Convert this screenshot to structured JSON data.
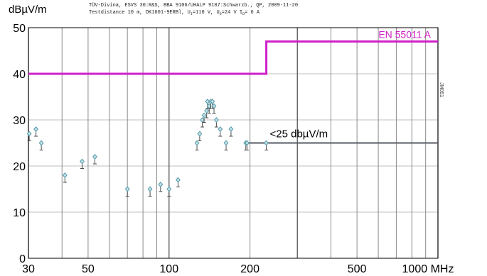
{
  "chart_data": {
    "type": "scatter",
    "ylabel": "dBµV/m",
    "xunit": "MHz",
    "header": {
      "line1": "TÜV-Divina, ESVS 30:R&S, BBA 9106/UHALP 9107:Schwarzb., QP, 2009-11-20",
      "line2_parts": [
        "Testdistance 10 m, DK1601-9ERBl, U",
        "I",
        "=110 V, U",
        "O",
        "=24 V I",
        "D",
        "= 6 A"
      ]
    },
    "side_label": "JM051",
    "x_scale": "log",
    "xlim": [
      30,
      1000
    ],
    "ylim": [
      0,
      50
    ],
    "x_ticks": [
      30,
      50,
      100,
      200,
      500,
      1000
    ],
    "x_tick_labels": [
      "30",
      "50",
      "100",
      "200",
      "500",
      "1000 MHz"
    ],
    "y_ticks": [
      0,
      10,
      20,
      30,
      40,
      50
    ],
    "y_tick_labels": [
      "0",
      "10",
      "20",
      "30",
      "40",
      "50"
    ],
    "grid_x": [
      30,
      40,
      50,
      60,
      70,
      80,
      90,
      100,
      200,
      300,
      400,
      500,
      600,
      700,
      800,
      900,
      1000
    ],
    "limit_line": {
      "name": "EN 55011 A",
      "color": "#d020c8",
      "points": [
        [
          30,
          40
        ],
        [
          230,
          40
        ],
        [
          230,
          47
        ],
        [
          1000,
          47
        ]
      ]
    },
    "reference_line": {
      "label": "<25 dbµV/m",
      "color": "#555a60",
      "points": [
        [
          195,
          25
        ],
        [
          1000,
          25
        ]
      ]
    },
    "marker_color": "#5a9aa6",
    "points": [
      {
        "x": 30.2,
        "y": 27
      },
      {
        "x": 32,
        "y": 28
      },
      {
        "x": 33.5,
        "y": 25
      },
      {
        "x": 41,
        "y": 18
      },
      {
        "x": 47.5,
        "y": 21
      },
      {
        "x": 53,
        "y": 22
      },
      {
        "x": 70,
        "y": 15
      },
      {
        "x": 85,
        "y": 15
      },
      {
        "x": 93,
        "y": 16
      },
      {
        "x": 100,
        "y": 15
      },
      {
        "x": 108,
        "y": 17
      },
      {
        "x": 127,
        "y": 25
      },
      {
        "x": 130,
        "y": 27
      },
      {
        "x": 133,
        "y": 30
      },
      {
        "x": 135,
        "y": 31
      },
      {
        "x": 138,
        "y": 32
      },
      {
        "x": 139,
        "y": 34
      },
      {
        "x": 141,
        "y": 33
      },
      {
        "x": 143,
        "y": 34
      },
      {
        "x": 145,
        "y": 34
      },
      {
        "x": 147,
        "y": 33
      },
      {
        "x": 150,
        "y": 30
      },
      {
        "x": 155,
        "y": 28
      },
      {
        "x": 163,
        "y": 25
      },
      {
        "x": 170,
        "y": 28
      },
      {
        "x": 193,
        "y": 25
      },
      {
        "x": 195,
        "y": 25
      },
      {
        "x": 230,
        "y": 25
      }
    ]
  }
}
